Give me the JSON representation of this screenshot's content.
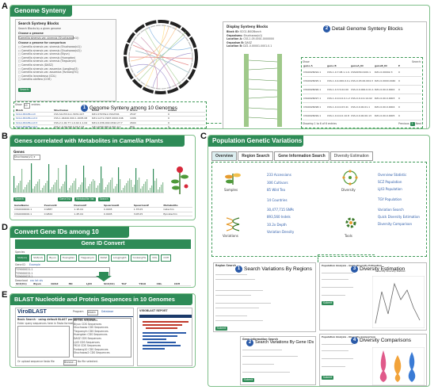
{
  "panels": {
    "A": {
      "letter": "A",
      "title": "Genome Synteny",
      "left": {
        "form_title": "Search Synteny Blocks",
        "search_by": "Search Blocks by a given genome",
        "choose_genome": "Choose a genome",
        "genome_value": "Camellia sinensis var. sinensis (Shuchazao(v1))",
        "choose_compare": "Choose a genome for comparison",
        "genomes": [
          "Camellia sinensis var. sinensis (Shuchazao(v1))",
          "Camellia sinensis var. sinensis (Shuchazao(v2))",
          "Camellia sinensis var. sinensis (Biyun)",
          "Camellia sinensis var. sinensis (Huangdan)",
          "Camellia sinensis var. sinensis (Tieguanyin)",
          "Camellia sinensis (DASZ)",
          "Camellia sinensis var. assamica (LongJing43)",
          "Camellia sinensis var. assamica (YunkangTG)",
          "Camellia lanceoleosa (CDL)",
          "Camellia oleifera (COH)"
        ],
        "show": "Show",
        "entries": "entries",
        "search": "Search:",
        "cols": [
          "Block",
          "Shuchazao",
          "DASZ",
          "Score",
          "evalue"
        ],
        "rows": [
          [
            "SCG1-Bi02Bunch",
            "CSS.S1233.0v1.3031.027",
            "DZ1.07033s1.CSS2341",
            "2547",
            "0"
          ],
          [
            "SCG1-Bi02Bunch2",
            "CSS.1.04440.000.1.0005.08",
            "DZ1.G171.CSN7.0000.046",
            "1006",
            "0"
          ],
          [
            "SCG1-Bi02Bunch3",
            "CSS.2.1.00.77.1.0.02.1.1.04",
            "DZ1.0.036.002.0342.27.7",
            "2604",
            "0"
          ],
          [
            "SCG1-Bi02Bunch4",
            "CSS.1.0.04.000.0.00.3.33",
            "CZ1.0200.000.0.001.0.1",
            "860",
            "0"
          ],
          [
            "SCG1-Bi02Bunch5",
            "CSS.2.1.01.1.0.00.1.2.5.4",
            "CZ1.0.00.0.1.0.1.0.01.4.02",
            "286",
            "0"
          ]
        ]
      },
      "right": {
        "display": "Display Synteny Blocks",
        "fields": [
          "Block ID:",
          "Organisms:",
          "Location A:",
          "Organism B:",
          "Location B:"
        ],
        "values": [
          "SCG1-Bi02Bunch",
          "Shuchazao(v1)",
          "CSS.1.05.0001.0000000",
          "DASZ",
          "DZ1.0.00001.0001.0.1"
        ],
        "show": "Show",
        "entries": "entries",
        "search": "Search:",
        "cols": [
          "gene A",
          "gene B",
          "geneA_ID",
          "geneB_ID",
          "E"
        ],
        "rows": [
          [
            "CSS0026094.1",
            "CSS.1.0.7.08.1.1.0.12",
            "CSS0030.0100.1",
            "DZ1.0.00002.3",
            "0"
          ],
          [
            "CSS0026095.1",
            "CSS.1.0.4.000.0.0.2.1",
            "CSS.0.03.00.004.3",
            "DZ1.0.0000.0040",
            "0"
          ],
          [
            "CSS0026096.1",
            "CSS.1.0.3.5.02.00",
            "CSS.0.0.000.0.01.1",
            "DZ1.0.00.0.0002",
            "0"
          ],
          [
            "CSS0026097.1",
            "CSS.1.0.0.0.0.0.1.23",
            "CSS.0.0.0.0.14.02",
            "DZ1.0.00.0.0003",
            "0"
          ],
          [
            "CSS0026098.1",
            "CSS.1.0.0.0.03.41",
            "CSS.0.0.00.01.1",
            "DZ1.0.00.0.0004",
            "0"
          ],
          [
            "CSS0026099.1",
            "CSS.1.0.0.0.0.10.8",
            "CSS.0.0.00.00.13",
            "DZ1.0.00.0.0005",
            "0"
          ]
        ],
        "showing": "Showing 1 to 6 of 6 entries",
        "prev": "Previous",
        "next": "Next",
        "page": "1"
      },
      "cap1": {
        "num": "1",
        "text": "Genome Synteny among 10 Genomes"
      },
      "cap2": {
        "num": "2",
        "text": "Detail Genome Synteny Blocks"
      }
    },
    "B": {
      "letter": "B",
      "title_pre": "Genes correlated with Metabolites in ",
      "title_em": "Camellia",
      "title_post": " Plants",
      "subtitle": "Genes",
      "chrom": "Shuchazao(v1) ▾",
      "button": "Search",
      "chips": [
        "Gene list",
        "Metabolite list",
        "Search"
      ],
      "show": "Show",
      "entries": "entries",
      "cols": [
        "GeneName",
        "PearsonR",
        "PearsonP",
        "SpearmanR",
        "SpearmanP",
        "Metabolite"
      ],
      "rows": [
        [
          "CSS0000000.1",
          "0.9887",
          "1.1E-04",
          "0.9945",
          "1.7E-05",
          "Catechin"
        ],
        [
          "CSS0000000.1",
          "0.9824",
          "1.2E-04",
          "0.9945",
          "3.0E-05",
          "Epicatechin"
        ]
      ]
    },
    "C": {
      "letter": "C",
      "title": "Population Genetic Variations",
      "tabs": [
        "Overview",
        "Region Search",
        "Gene Information Search",
        "Diversity Estimation"
      ],
      "stats": [
        "233 Accessions",
        "306 Cultivars",
        "85 Wild Tea",
        "14 Countries",
        "30,477,715 SNPs",
        "893,560 Indels",
        "10.2x Depth",
        "Variation Density"
      ],
      "links_right": [
        "Overview Statistic",
        "SCZ Population",
        "LJ43 Population",
        "TGY Population",
        "Variation Search",
        "Quick Diversity Estimation",
        "Diversity Comparison"
      ],
      "labels": {
        "samples": "Samples",
        "variations": "Variations",
        "diversity": "Diversity",
        "tools": "Tools"
      },
      "caps": [
        {
          "num": "1",
          "text": "Search Variations By Regions"
        },
        {
          "num": "2",
          "text": "Search Variations By Gene IDs"
        },
        {
          "num": "3",
          "text": "Diversity Estimation"
        },
        {
          "num": "4",
          "text": "Diversity Comparisons"
        }
      ],
      "screens": {
        "region_title": "Region Search",
        "div_title": "Population Analysis - Quick Diversity Estimation",
        "cmp_title": "Population Analysis - Diversity Comparison",
        "gene_title": "Gene Information Search",
        "legend": "Diversity Diversity Statistic",
        "submit": "Submit"
      }
    },
    "D": {
      "letter": "D",
      "title": "Convert Gene IDs among 10 Genomes",
      "heading": "Gene ID Convert",
      "species_label": "Species",
      "species": [
        "SCZ(v1)",
        "SCZ(v2)",
        "Biyun",
        "Huangdan",
        "Tieguanyin",
        "DASZ",
        "LongJing43",
        "YunkangTG",
        "CDL",
        "COH"
      ],
      "gene_id": "Gene ID",
      "example": "Example",
      "ids": [
        "TGY000021.1",
        "TGY000022.1",
        "TGY000023.1"
      ],
      "submit": "Submit",
      "download": "Download",
      "formats": [
        "csv",
        "txt",
        "xls"
      ],
      "cols": [
        "SCZ(V1)",
        "Biyun",
        "DASZ",
        "HD",
        "LJ43",
        "SCZ(V2)",
        "TGY",
        "YK10",
        "CDL",
        "COH"
      ]
    },
    "E": {
      "letter": "E",
      "title": "BLAST Nucleotide and Protein Sequences in 10 Genomes",
      "brand": "ViroBLAST",
      "program_label": "Program",
      "program": "blastn",
      "db_label": "Database",
      "search_text": "Basic Search · using default BLAST parameter settings",
      "enter_query": "Enter query sequences here in Fasta format",
      "dbs": [
        "BB CDS sequences",
        "Biyun CDS Sequences",
        "Shuchazao CDS Sequences",
        "Tieguanyin CDS Sequences",
        "Huangdan CDS Sequences",
        "DASZ CDS Sequences",
        "LJ43 CDS Sequences",
        "YK10 CDS Sequences",
        "Yunkang10 CDS Sequences",
        "Shuchazao2 CDS Sequences"
      ],
      "result_title": "VIROBLAST REPORT",
      "upload": "Or upload sequence fasta file",
      "browse": "Browse...",
      "no_file": "No file selected."
    }
  }
}
